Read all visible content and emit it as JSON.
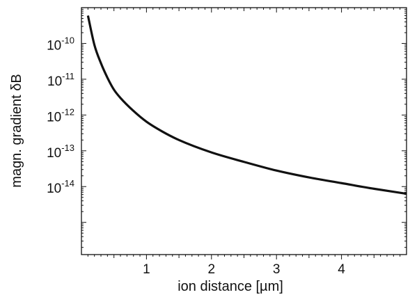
{
  "chart_data": {
    "type": "line",
    "title": "",
    "xlabel": "ion distance [µm]",
    "ylabel": "magn. gradient δB",
    "xlim": [
      0,
      5
    ],
    "ylim_log10": [
      -15.9,
      -9.0
    ],
    "yscale": "log",
    "grid": false,
    "x_ticks": [
      1,
      2,
      3,
      4
    ],
    "x_tick_labels": [
      "1",
      "2",
      "3",
      "4"
    ],
    "y_ticks": [
      {
        "value": 1e-10,
        "base": "10",
        "exp": "-10"
      },
      {
        "value": 1e-11,
        "base": "10",
        "exp": "-11"
      },
      {
        "value": 1e-12,
        "base": "10",
        "exp": "-12"
      },
      {
        "value": 1e-13,
        "base": "10",
        "exp": "-13"
      },
      {
        "value": 1e-14,
        "base": "10",
        "exp": "-14"
      }
    ],
    "series": [
      {
        "color": "#111111",
        "points": [
          [
            0.1,
            6e-10
          ],
          [
            0.2,
            9e-11
          ],
          [
            0.3,
            2.8e-11
          ],
          [
            0.4,
            1.1e-11
          ],
          [
            0.5,
            5.1e-12
          ],
          [
            0.6,
            3e-12
          ],
          [
            0.8,
            1.3e-12
          ],
          [
            1.0,
            6.5e-13
          ],
          [
            1.25,
            3.4e-13
          ],
          [
            1.5,
            2e-13
          ],
          [
            2.0,
            9e-14
          ],
          [
            2.5,
            4.9e-14
          ],
          [
            3.0,
            2.8e-14
          ],
          [
            3.5,
            1.8e-14
          ],
          [
            4.0,
            1.25e-14
          ],
          [
            4.5,
            8.7e-15
          ],
          [
            5.0,
            6.3e-15
          ]
        ]
      }
    ]
  }
}
